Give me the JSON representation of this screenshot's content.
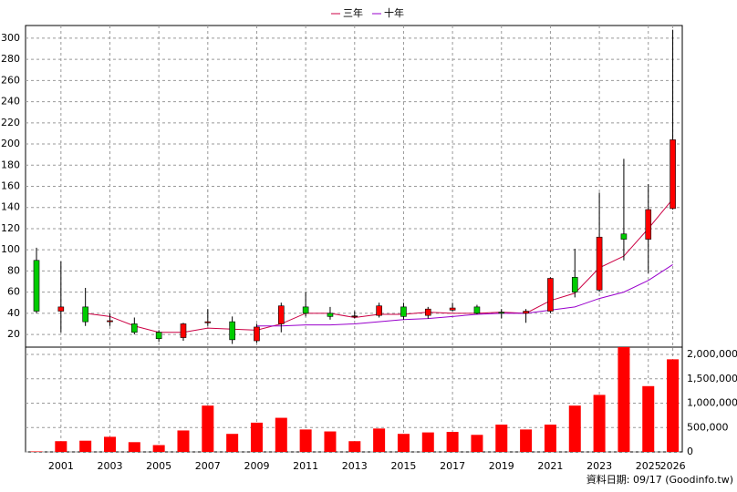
{
  "chart_data": [
    {
      "type": "candlestick",
      "open": [
        90,
        42,
        46,
        32,
        30,
        22,
        17,
        31,
        32,
        14,
        30,
        46,
        40,
        37,
        38,
        46,
        38,
        43,
        46,
        41,
        40,
        42,
        74,
        62,
        115,
        110,
        139
      ],
      "high": [
        102,
        89,
        64,
        40,
        36,
        24,
        31,
        44,
        37,
        30,
        50,
        60,
        46,
        42,
        50,
        50,
        46,
        50,
        48,
        44,
        44,
        74,
        101,
        154,
        186,
        162,
        308
      ],
      "low": [
        40,
        22,
        28,
        28,
        20,
        13,
        14,
        28,
        11,
        12,
        22,
        37,
        34,
        35,
        36,
        34,
        35,
        42,
        39,
        35,
        31,
        40,
        55,
        60,
        90,
        78,
        138
      ],
      "close": [
        42,
        46,
        32,
        33,
        22,
        16,
        30,
        32,
        15,
        27,
        47,
        40,
        37,
        37.5,
        47,
        37,
        44,
        45,
        40,
        40,
        42,
        73,
        60,
        112,
        110,
        138,
        204
      ],
      "up_color": "#ff0000",
      "down_color": "#00cc00",
      "series": [
        {
          "name": "三年",
          "color": "#cc0044",
          "values": [
            null,
            null,
            40,
            37,
            28,
            22,
            22,
            26,
            25,
            24,
            30,
            40,
            40,
            36,
            39,
            39,
            41,
            40,
            40,
            41,
            40,
            52,
            59,
            83,
            94,
            120,
            148
          ]
        },
        {
          "name": "十年",
          "color": "#9900cc",
          "values": [
            null,
            null,
            null,
            null,
            null,
            null,
            null,
            null,
            null,
            28,
            28,
            29,
            29,
            30,
            32,
            34,
            35,
            37,
            39,
            40,
            40,
            43,
            46,
            54,
            60,
            71,
            86
          ]
        }
      ],
      "ylim": [
        8,
        312
      ],
      "yticks": [
        20,
        40,
        60,
        80,
        100,
        120,
        140,
        160,
        180,
        200,
        220,
        240,
        260,
        280,
        300
      ],
      "grid": true
    },
    {
      "type": "bar",
      "categories": [
        null,
        "2001",
        null,
        "2003",
        null,
        "2005",
        null,
        "2007",
        null,
        "2009",
        null,
        "2011",
        null,
        "2013",
        null,
        "2015",
        null,
        "2017",
        null,
        "2019",
        null,
        "2021",
        null,
        "2023",
        null,
        "2025",
        "2026"
      ],
      "values": [
        10000,
        220000,
        230000,
        310000,
        200000,
        140000,
        440000,
        950000,
        370000,
        600000,
        700000,
        460000,
        420000,
        220000,
        480000,
        370000,
        400000,
        410000,
        350000,
        560000,
        460000,
        560000,
        950000,
        1170000,
        2150000,
        1350000,
        1900000
      ],
      "color": "#ff0000",
      "ylim": [
        0,
        2150000
      ],
      "yticks": [
        0,
        {
          "value": 500000,
          "label": "500,000"
        },
        {
          "value": 1000000,
          "label": "1,000,000"
        },
        {
          "value": 1500000,
          "label": "1,500,000"
        },
        {
          "value": 2000000,
          "label": "2,000,000"
        }
      ],
      "grid": true,
      "source": "資料日期: 09/17 (Goodinfo.tw)"
    }
  ]
}
